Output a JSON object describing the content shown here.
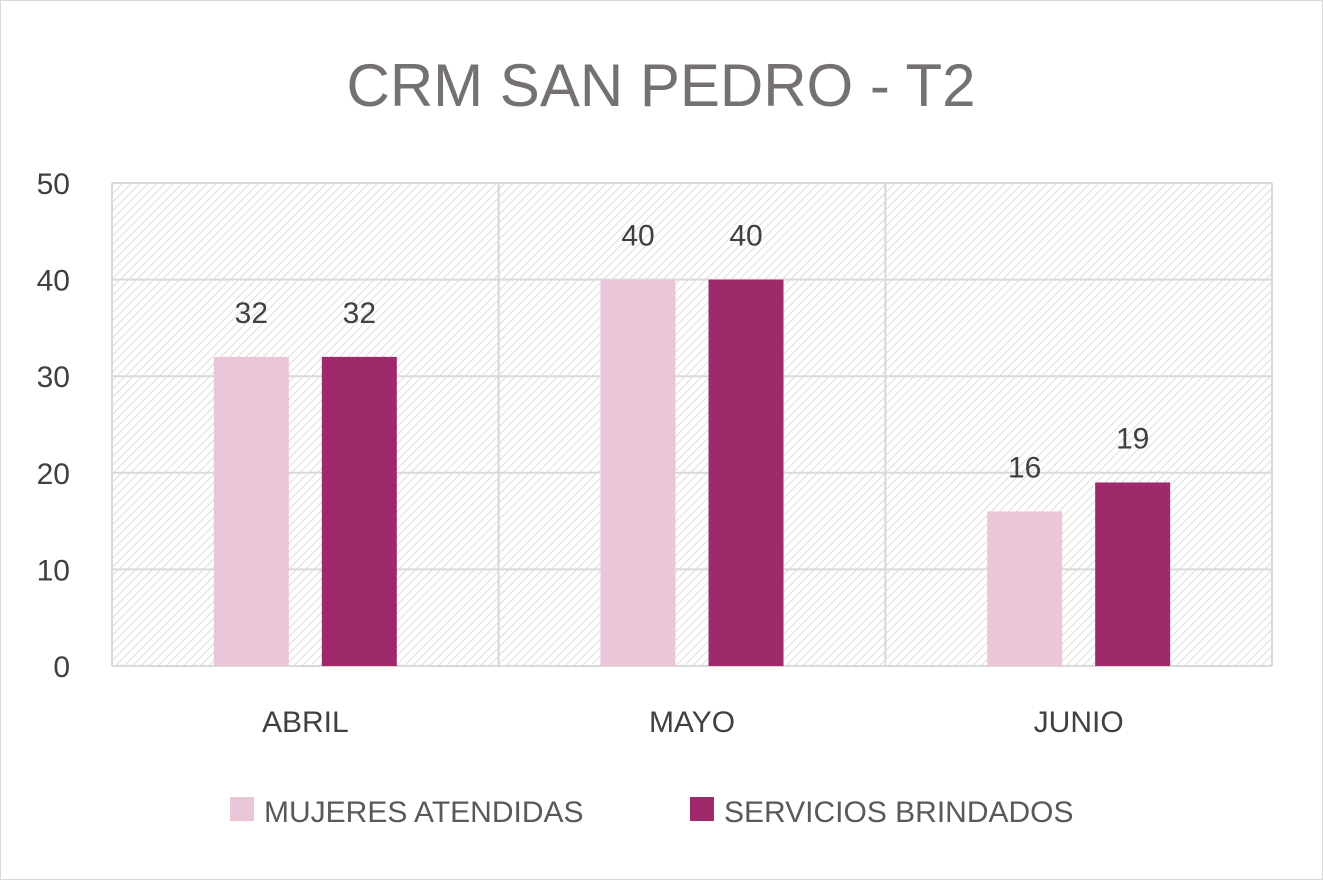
{
  "chart_data": {
    "type": "bar",
    "title": "CRM SAN PEDRO - T2",
    "categories": [
      "ABRIL",
      "MAYO",
      "JUNIO"
    ],
    "series": [
      {
        "name": "MUJERES ATENDIDAS",
        "values": [
          32,
          40,
          16
        ],
        "color": "#ebc6d9"
      },
      {
        "name": "SERVICIOS BRINDADOS",
        "values": [
          32,
          40,
          19
        ],
        "color": "#9e2a6b"
      }
    ],
    "ylim": [
      0,
      50
    ],
    "yticks": [
      0,
      10,
      20,
      30,
      40,
      50
    ],
    "grid": true,
    "legend": "bottom",
    "data_labels": true
  }
}
